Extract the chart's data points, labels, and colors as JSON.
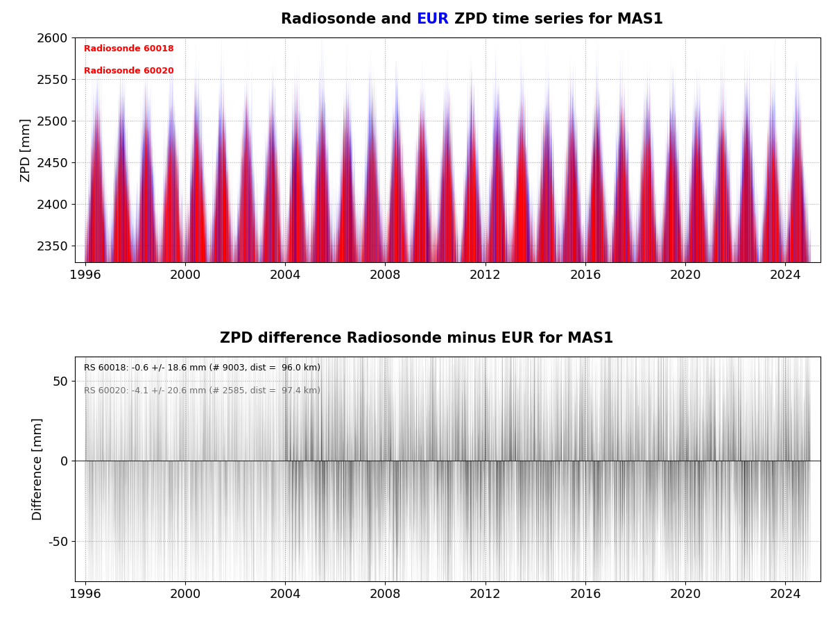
{
  "title1_pre": "Radiosonde and ",
  "title1_mid": "EUR",
  "title1_post": " ZPD time series for MAS1",
  "title2": "ZPD difference Radiosonde minus EUR for MAS1",
  "ylabel1": "ZPD [mm]",
  "ylabel2": "Difference [mm]",
  "legend1_line1": "Radiosonde 60018",
  "legend1_line2": "Radiosonde 60020",
  "legend2_line1": "RS 60018: -0.6 +/- 18.6 mm (# 9003, dist =  96.0 km)",
  "legend2_line2": "RS 60020: -4.1 +/- 20.6 mm (# 2585, dist =  97.4 km)",
  "color_rs1": "#FF0000",
  "color_rs2": "#0000FF",
  "color_diff_gray": "#707070",
  "color_diff_black": "#000000",
  "color_eur_text": "#0000FF",
  "ylim1": [
    2330,
    2600
  ],
  "ylim2": [
    -75,
    65
  ],
  "yticks1": [
    2350,
    2400,
    2450,
    2500,
    2550,
    2600
  ],
  "yticks2": [
    -50,
    0,
    50
  ],
  "xticks": [
    1996,
    2000,
    2004,
    2008,
    2012,
    2016,
    2020,
    2024
  ],
  "xmin": 1995.6,
  "xmax": 2025.4,
  "grid_color": "#aaaaaa",
  "background_color": "#ffffff",
  "title_fontsize": 15,
  "label_fontsize": 13,
  "tick_fontsize": 13,
  "legend_fontsize": 9,
  "seed": 42,
  "zpd_base": 2400,
  "zpd_amplitude": 75,
  "zpd_noise": 35,
  "transition_year": 2004.0
}
